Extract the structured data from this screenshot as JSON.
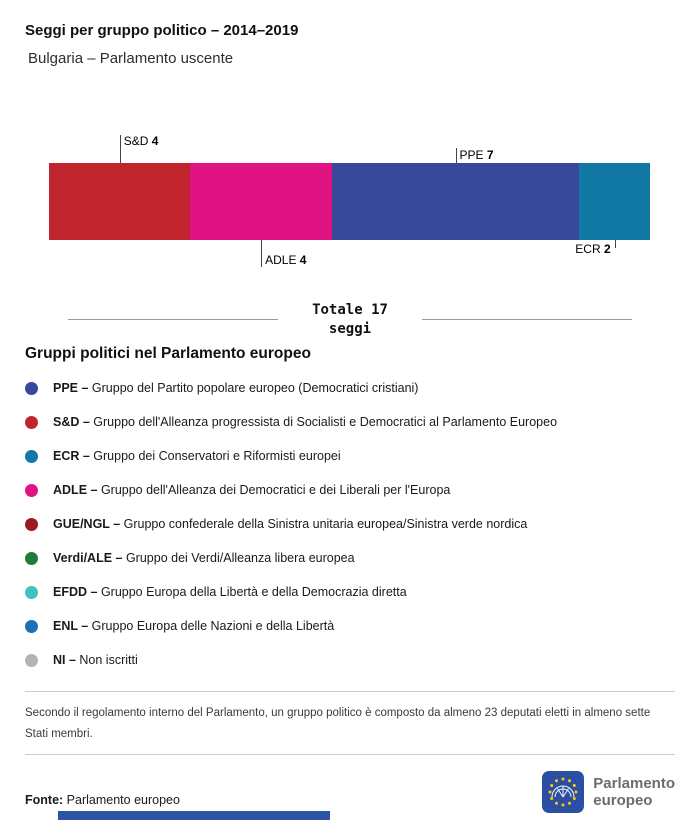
{
  "header": {
    "title": "Seggi per gruppo politico – 2014–2019",
    "subtitle": "Bulgaria – Parlamento uscente"
  },
  "chart_data": {
    "type": "bar",
    "stacked": true,
    "orientation": "horizontal",
    "title": "Seggi per gruppo politico – 2014–2019",
    "subtitle": "Bulgaria – Parlamento uscente",
    "categories": [
      "S&D",
      "ADLE",
      "PPE",
      "ECR"
    ],
    "values": [
      4,
      4,
      7,
      2
    ],
    "total": 17,
    "total_label": "Totale 17",
    "total_unit": "seggi",
    "segments": [
      {
        "group": "S&D",
        "seats": 4,
        "color": "#C0252D",
        "label_side": "top",
        "text_side": "right",
        "tick_len": 28,
        "text_off": 15
      },
      {
        "group": "ADLE",
        "seats": 4,
        "color": "#E01383",
        "label_side": "bottom",
        "text_side": "right",
        "tick_len": 27,
        "text_off": 13
      },
      {
        "group": "PPE",
        "seats": 7,
        "color": "#38499B",
        "label_side": "top",
        "text_side": "right",
        "tick_len": 15,
        "text_off": 1
      },
      {
        "group": "ECR",
        "seats": 2,
        "color": "#1279A4",
        "label_side": "bottom",
        "text_side": "left",
        "tick_len": 8,
        "text_off": 2
      }
    ]
  },
  "legend": {
    "title": "Gruppi politici nel Parlamento europeo",
    "items": [
      {
        "abbr": "PPE –",
        "desc": "Gruppo del Partito popolare europeo (Democratici cristiani)",
        "color": "#38499B"
      },
      {
        "abbr": "S&D –",
        "desc": "Gruppo dell'Alleanza progressista di Socialisti e Democratici al Parlamento Europeo",
        "color": "#C0252D"
      },
      {
        "abbr": "ECR –",
        "desc": "Gruppo dei Conservatori e Riformisti europei",
        "color": "#1279A4"
      },
      {
        "abbr": "ADLE –",
        "desc": "Gruppo dell'Alleanza dei Democratici e dei Liberali per l'Europa",
        "color": "#E01383"
      },
      {
        "abbr": "GUE/NGL –",
        "desc": "Gruppo confederale della Sinistra unitaria europea/Sinistra verde nordica",
        "color": "#9C1B20"
      },
      {
        "abbr": "Verdi/ALE –",
        "desc": "Gruppo dei Verdi/Alleanza libera europea",
        "color": "#1F7B38"
      },
      {
        "abbr": "EFDD –",
        "desc": "Gruppo Europa della Libertà e della Democrazia diretta",
        "color": "#41C1C1"
      },
      {
        "abbr": "ENL –",
        "desc": "Gruppo Europa delle Nazioni e della Libertà",
        "color": "#1C70B8"
      },
      {
        "abbr": "NI –",
        "desc": "Non iscritti",
        "color": "#B3B3B3"
      }
    ]
  },
  "footnote": "Secondo il regolamento interno del Parlamento, un gruppo politico è composto da almeno 23 deputati eletti in almeno sette Stati membri.",
  "footer": {
    "source_label": "Fonte:",
    "source": "Parlamento europeo",
    "logo_line1": "Parlamento",
    "logo_line2": "europeo"
  }
}
